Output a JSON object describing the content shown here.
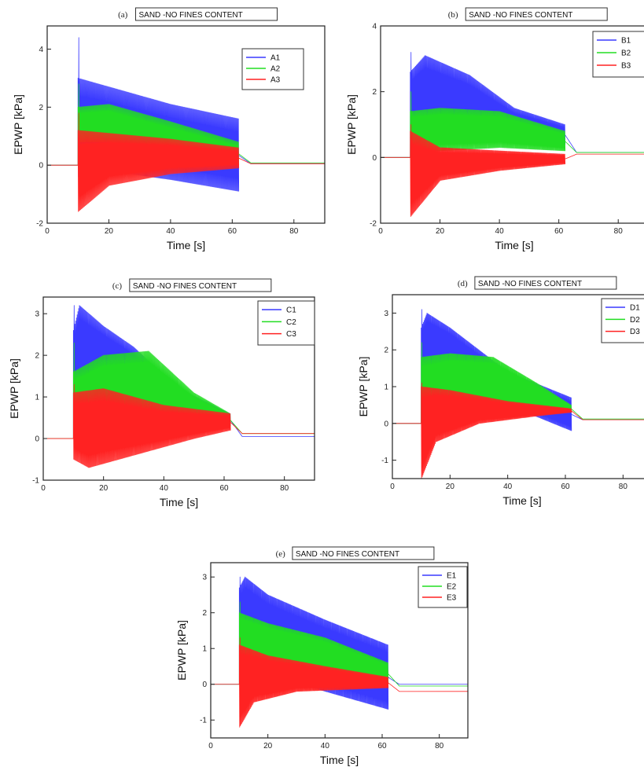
{
  "chart_data": [
    {
      "type": "line",
      "panel": "(a)",
      "title": "SAND -NO FINES CONTENT",
      "xlabel": "Time [s]",
      "ylabel": "EPWP [kPa]",
      "xlim": [
        0,
        90
      ],
      "ylim": [
        -2,
        4.8
      ],
      "xticks": [
        0,
        20,
        40,
        60,
        80
      ],
      "yticks": [
        -2,
        0,
        2,
        4
      ],
      "legend": "top-right",
      "series": [
        {
          "name": "A1",
          "color": "#3a3aff",
          "start": 10,
          "end": 62,
          "peak": 4.4,
          "upper": [
            [
              10,
              3.0
            ],
            [
              20,
              2.7
            ],
            [
              40,
              2.1
            ],
            [
              62,
              1.6
            ]
          ],
          "lower": [
            [
              10,
              -0.4
            ],
            [
              20,
              -0.2
            ],
            [
              40,
              -0.5
            ],
            [
              62,
              -0.9
            ]
          ],
          "residual": 0.05
        },
        {
          "name": "A2",
          "color": "#22dd22",
          "start": 10,
          "end": 62,
          "peak": 2.8,
          "upper": [
            [
              10,
              2.0
            ],
            [
              20,
              2.1
            ],
            [
              40,
              1.5
            ],
            [
              62,
              0.8
            ]
          ],
          "lower": [
            [
              10,
              0.8
            ],
            [
              20,
              0.8
            ],
            [
              40,
              0.3
            ],
            [
              62,
              0.0
            ]
          ],
          "residual": 0.08
        },
        {
          "name": "A3",
          "color": "#ff2222",
          "start": 10,
          "end": 62,
          "peak": 1.8,
          "upper": [
            [
              10,
              1.2
            ],
            [
              20,
              1.1
            ],
            [
              40,
              0.9
            ],
            [
              62,
              0.6
            ]
          ],
          "lower": [
            [
              10,
              -1.6
            ],
            [
              20,
              -0.7
            ],
            [
              40,
              -0.3
            ],
            [
              62,
              -0.1
            ]
          ],
          "residual": 0.05
        }
      ]
    },
    {
      "type": "line",
      "panel": "(b)",
      "title": "SAND -NO FINES CONTENT",
      "xlabel": "Time [s]",
      "ylabel": "EPWP [kPa]",
      "xlim": [
        0,
        90
      ],
      "ylim": [
        -2,
        4
      ],
      "xticks": [
        0,
        20,
        40,
        60,
        80
      ],
      "yticks": [
        -2,
        0,
        2,
        4
      ],
      "legend": "top-right",
      "series": [
        {
          "name": "B1",
          "color": "#3a3aff",
          "start": 10,
          "end": 62,
          "peak": 3.2,
          "upper": [
            [
              10,
              2.6
            ],
            [
              15,
              3.1
            ],
            [
              30,
              2.5
            ],
            [
              45,
              1.5
            ],
            [
              62,
              1.0
            ]
          ],
          "lower": [
            [
              10,
              0.6
            ],
            [
              20,
              0.6
            ],
            [
              40,
              0.5
            ],
            [
              62,
              0.4
            ]
          ],
          "residual": 0.15
        },
        {
          "name": "B2",
          "color": "#22dd22",
          "start": 10,
          "end": 62,
          "peak": 2.0,
          "upper": [
            [
              10,
              1.4
            ],
            [
              20,
              1.5
            ],
            [
              40,
              1.4
            ],
            [
              62,
              0.8
            ]
          ],
          "lower": [
            [
              10,
              0.2
            ],
            [
              20,
              0.2
            ],
            [
              40,
              0.3
            ],
            [
              62,
              0.2
            ]
          ],
          "residual": 0.15
        },
        {
          "name": "B3",
          "color": "#ff2222",
          "start": 10,
          "end": 62,
          "peak": 1.0,
          "upper": [
            [
              10,
              0.8
            ],
            [
              20,
              0.3
            ],
            [
              40,
              0.2
            ],
            [
              62,
              0.1
            ]
          ],
          "lower": [
            [
              10,
              -1.8
            ],
            [
              20,
              -0.7
            ],
            [
              40,
              -0.4
            ],
            [
              62,
              -0.2
            ]
          ],
          "residual": 0.1
        }
      ]
    },
    {
      "type": "line",
      "panel": "(c)",
      "title": "SAND -NO FINES CONTENT",
      "xlabel": "Time [s]",
      "ylabel": "EPWP [kPa]",
      "xlim": [
        0,
        90
      ],
      "ylim": [
        -1,
        3.4
      ],
      "xticks": [
        0,
        20,
        40,
        60,
        80
      ],
      "yticks": [
        -1,
        0,
        1,
        2,
        3
      ],
      "legend": "top-right",
      "series": [
        {
          "name": "C1",
          "color": "#3a3aff",
          "start": 10,
          "end": 62,
          "peak": 3.2,
          "upper": [
            [
              10,
              2.6
            ],
            [
              12,
              3.2
            ],
            [
              20,
              2.7
            ],
            [
              30,
              2.2
            ],
            [
              45,
              1.2
            ],
            [
              62,
              0.6
            ]
          ],
          "lower": [
            [
              10,
              1.2
            ],
            [
              20,
              1.4
            ],
            [
              40,
              0.8
            ],
            [
              62,
              0.3
            ]
          ],
          "residual": 0.05
        },
        {
          "name": "C2",
          "color": "#22dd22",
          "start": 10,
          "end": 62,
          "peak": 2.3,
          "upper": [
            [
              10,
              1.6
            ],
            [
              20,
              2.0
            ],
            [
              35,
              2.1
            ],
            [
              50,
              1.1
            ],
            [
              62,
              0.6
            ]
          ],
          "lower": [
            [
              10,
              0.3
            ],
            [
              20,
              0.4
            ],
            [
              40,
              0.5
            ],
            [
              62,
              0.3
            ]
          ],
          "residual": 0.12
        },
        {
          "name": "C3",
          "color": "#ff2222",
          "start": 10,
          "end": 62,
          "peak": 1.3,
          "upper": [
            [
              10,
              1.1
            ],
            [
              20,
              1.2
            ],
            [
              40,
              0.8
            ],
            [
              62,
              0.6
            ]
          ],
          "lower": [
            [
              10,
              -0.5
            ],
            [
              15,
              -0.7
            ],
            [
              30,
              -0.4
            ],
            [
              50,
              0.0
            ],
            [
              62,
              0.2
            ]
          ],
          "residual": 0.12
        }
      ]
    },
    {
      "type": "line",
      "panel": "(d)",
      "title": "SAND -NO FINES CONTENT",
      "xlabel": "Time [s]",
      "ylabel": "EPWP [kPa]",
      "xlim": [
        0,
        90
      ],
      "ylim": [
        -1.5,
        3.5
      ],
      "xticks": [
        0,
        20,
        40,
        60,
        80
      ],
      "yticks": [
        -1,
        0,
        1,
        2,
        3
      ],
      "legend": "top-right",
      "series": [
        {
          "name": "D1",
          "color": "#3a3aff",
          "start": 10,
          "end": 62,
          "peak": 3.1,
          "upper": [
            [
              10,
              2.6
            ],
            [
              12,
              3.0
            ],
            [
              20,
              2.6
            ],
            [
              40,
              1.4
            ],
            [
              62,
              0.7
            ]
          ],
          "lower": [
            [
              10,
              1.2
            ],
            [
              20,
              1.3
            ],
            [
              40,
              0.5
            ],
            [
              62,
              -0.2
            ]
          ],
          "residual": 0.1
        },
        {
          "name": "D2",
          "color": "#22dd22",
          "start": 10,
          "end": 62,
          "peak": 2.2,
          "upper": [
            [
              10,
              1.8
            ],
            [
              20,
              1.9
            ],
            [
              35,
              1.8
            ],
            [
              50,
              1.1
            ],
            [
              62,
              0.5
            ]
          ],
          "lower": [
            [
              10,
              -0.3
            ],
            [
              20,
              0.3
            ],
            [
              40,
              0.5
            ],
            [
              62,
              0.3
            ]
          ],
          "residual": 0.12
        },
        {
          "name": "D3",
          "color": "#ff2222",
          "start": 10,
          "end": 62,
          "peak": 1.1,
          "upper": [
            [
              10,
              1.0
            ],
            [
              20,
              0.9
            ],
            [
              40,
              0.6
            ],
            [
              62,
              0.4
            ]
          ],
          "lower": [
            [
              10,
              -1.5
            ],
            [
              15,
              -0.5
            ],
            [
              30,
              0.0
            ],
            [
              50,
              0.2
            ],
            [
              62,
              0.3
            ]
          ],
          "residual": 0.1
        }
      ]
    },
    {
      "type": "line",
      "panel": "(e)",
      "title": "SAND -NO FINES CONTENT",
      "xlabel": "Time [s]",
      "ylabel": "EPWP [kPa]",
      "xlim": [
        0,
        90
      ],
      "ylim": [
        -1.5,
        3.4
      ],
      "xticks": [
        0,
        20,
        40,
        60,
        80
      ],
      "yticks": [
        -1,
        0,
        1,
        2,
        3
      ],
      "legend": "top-right",
      "series": [
        {
          "name": "E1",
          "color": "#3a3aff",
          "start": 10,
          "end": 62,
          "peak": 3.0,
          "upper": [
            [
              10,
              2.7
            ],
            [
              12,
              3.0
            ],
            [
              20,
              2.5
            ],
            [
              40,
              1.8
            ],
            [
              62,
              1.1
            ]
          ],
          "lower": [
            [
              10,
              0.5
            ],
            [
              20,
              0.3
            ],
            [
              40,
              -0.2
            ],
            [
              62,
              -0.7
            ]
          ],
          "residual": 0.0
        },
        {
          "name": "E2",
          "color": "#22dd22",
          "start": 10,
          "end": 62,
          "peak": 2.3,
          "upper": [
            [
              10,
              2.0
            ],
            [
              20,
              1.7
            ],
            [
              40,
              1.3
            ],
            [
              62,
              0.6
            ]
          ],
          "lower": [
            [
              10,
              0.6
            ],
            [
              20,
              0.6
            ],
            [
              40,
              0.3
            ],
            [
              62,
              0.0
            ]
          ],
          "residual": -0.05
        },
        {
          "name": "E3",
          "color": "#ff2222",
          "start": 10,
          "end": 62,
          "peak": 1.3,
          "upper": [
            [
              10,
              1.1
            ],
            [
              20,
              0.8
            ],
            [
              40,
              0.5
            ],
            [
              62,
              0.2
            ]
          ],
          "lower": [
            [
              10,
              -1.2
            ],
            [
              15,
              -0.5
            ],
            [
              30,
              -0.2
            ],
            [
              62,
              -0.1
            ]
          ],
          "residual": -0.2
        }
      ]
    }
  ]
}
